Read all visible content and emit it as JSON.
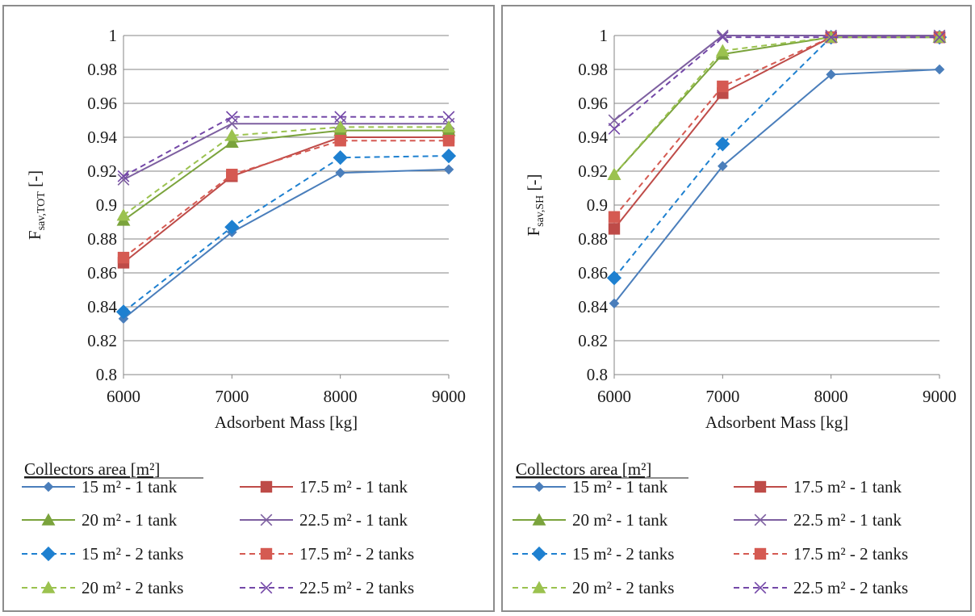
{
  "legend_title": "Collectors area [m²]",
  "x_axis_label": "Adsorbent Mass [kg]",
  "series_styles": [
    {
      "name": "15 m² - 1 tank",
      "color": "#4a7ebb",
      "dash": false,
      "marker": "diamond-small"
    },
    {
      "name": "17.5 m² - 1 tank",
      "color": "#be4b48",
      "dash": false,
      "marker": "square"
    },
    {
      "name": "20 m² - 1 tank",
      "color": "#7aa33c",
      "dash": false,
      "marker": "triangle"
    },
    {
      "name": "22.5 m² - 1 tank",
      "color": "#7d5fa0",
      "dash": false,
      "marker": "x"
    },
    {
      "name": "15 m² - 2 tanks",
      "color": "#1e80d0",
      "dash": true,
      "marker": "diamond"
    },
    {
      "name": "17.5 m² - 2 tanks",
      "color": "#d55a52",
      "dash": true,
      "marker": "square"
    },
    {
      "name": "20 m² - 2 tanks",
      "color": "#9bc24f",
      "dash": true,
      "marker": "triangle"
    },
    {
      "name": "22.5 m² - 2 tanks",
      "color": "#7448a8",
      "dash": true,
      "marker": "x"
    }
  ],
  "chart_data": [
    {
      "type": "line",
      "ylabel_main": "F",
      "ylabel_sub": "sav,TOT",
      "ylabel_unit": " [-]",
      "xlabel": "Adsorbent Mass [kg]",
      "x": [
        6000,
        7000,
        8000,
        9000
      ],
      "x_ticks": [
        "6000",
        "7000",
        "8000",
        "9000"
      ],
      "ylim": [
        0.8,
        1.0
      ],
      "y_ticks": [
        "0.8",
        "0.82",
        "0.84",
        "0.86",
        "0.88",
        "0.9",
        "0.92",
        "0.94",
        "0.96",
        "0.98",
        "1"
      ],
      "grid": true,
      "series": [
        {
          "name": "15 m² - 1 tank",
          "values": [
            0.833,
            0.884,
            0.919,
            0.921
          ]
        },
        {
          "name": "17.5 m² - 1 tank",
          "values": [
            0.866,
            0.917,
            0.94,
            0.94
          ]
        },
        {
          "name": "20 m² - 1 tank",
          "values": [
            0.891,
            0.937,
            0.944,
            0.944
          ]
        },
        {
          "name": "22.5 m² - 1 tank",
          "values": [
            0.915,
            0.948,
            0.948,
            0.948
          ]
        },
        {
          "name": "15 m² - 2 tanks",
          "values": [
            0.837,
            0.887,
            0.928,
            0.929
          ]
        },
        {
          "name": "17.5 m² - 2 tanks",
          "values": [
            0.869,
            0.918,
            0.938,
            0.938
          ]
        },
        {
          "name": "20 m² - 2 tanks",
          "values": [
            0.894,
            0.941,
            0.946,
            0.946
          ]
        },
        {
          "name": "22.5 m² - 2 tanks",
          "values": [
            0.917,
            0.952,
            0.952,
            0.952
          ]
        }
      ]
    },
    {
      "type": "line",
      "ylabel_main": "F",
      "ylabel_sub": "sav,SH",
      "ylabel_unit": " [-]",
      "xlabel": "Adsorbent Mass [kg]",
      "x": [
        6000,
        7000,
        8000,
        9000
      ],
      "x_ticks": [
        "6000",
        "7000",
        "8000",
        "9000"
      ],
      "ylim": [
        0.8,
        1.0
      ],
      "y_ticks": [
        "0.8",
        "0.82",
        "0.84",
        "0.86",
        "0.88",
        "0.9",
        "0.92",
        "0.94",
        "0.96",
        "0.98",
        "1"
      ],
      "grid": true,
      "series": [
        {
          "name": "15 m² - 1 tank",
          "values": [
            0.842,
            0.923,
            0.977,
            0.98
          ]
        },
        {
          "name": "17.5 m² - 1 tank",
          "values": [
            0.886,
            0.966,
            0.999,
            0.999
          ]
        },
        {
          "name": "20 m² - 1 tank",
          "values": [
            0.918,
            0.989,
            0.999,
            0.999
          ]
        },
        {
          "name": "22.5 m² - 1 tank",
          "values": [
            0.95,
            1.0,
            1.0,
            1.0
          ]
        },
        {
          "name": "15 m² - 2 tanks",
          "values": [
            0.857,
            0.936,
            0.999,
            0.999
          ]
        },
        {
          "name": "17.5 m² - 2 tanks",
          "values": [
            0.893,
            0.97,
            0.999,
            0.999
          ]
        },
        {
          "name": "20 m² - 2 tanks",
          "values": [
            0.918,
            0.991,
            0.999,
            0.999
          ]
        },
        {
          "name": "22.5 m² - 2 tanks",
          "values": [
            0.945,
            0.999,
            0.999,
            0.999
          ]
        }
      ]
    }
  ]
}
